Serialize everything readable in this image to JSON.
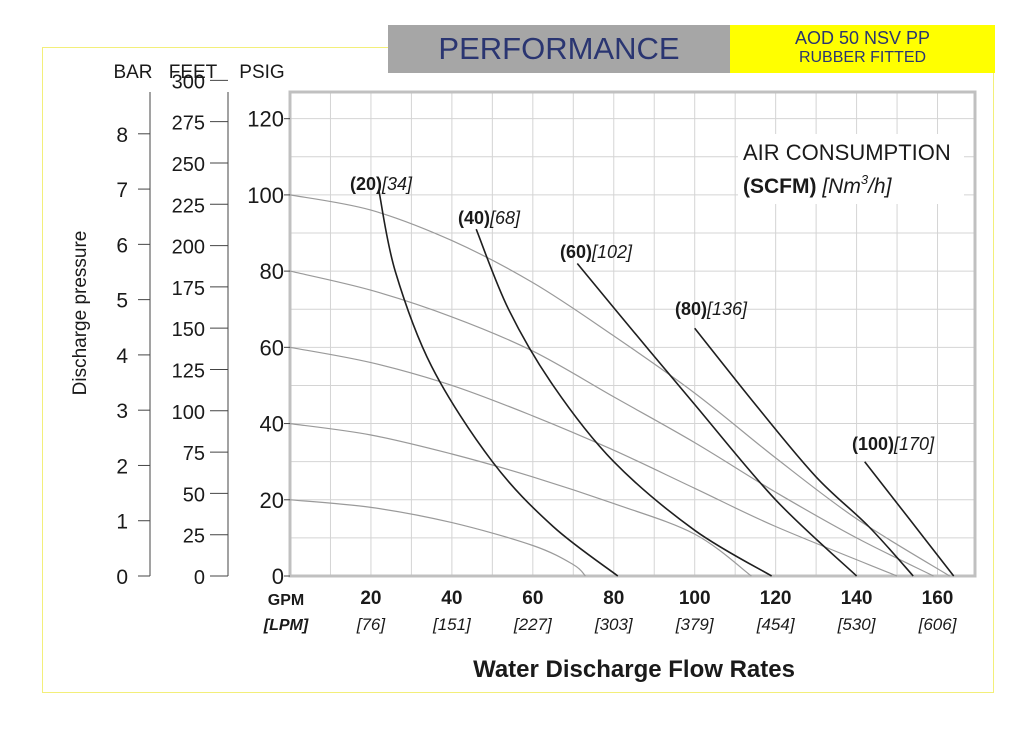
{
  "header": {
    "title": "PERFORMANCE",
    "model_line1": "AOD 50 NSV PP",
    "model_line2": "RUBBER FITTED"
  },
  "colors": {
    "title_bar": "#a6a6a6",
    "model_bar": "#ffff00",
    "header_text": "#2a3571",
    "frame": "#f3ef7a",
    "grid": "#d4d4d4",
    "plot_border": "#c0c0c0",
    "head_curves": "#9a9a9a",
    "air_curves": "#1f1f1f"
  },
  "chart_data": {
    "type": "line",
    "xlabel": "Water Discharge Flow Rates",
    "ylabel": "Discharge pressure",
    "xlim": [
      0,
      170
    ],
    "ylim": [
      0,
      127
    ],
    "grid": true,
    "x_unit_labels": [
      "GPM",
      "[LPM]"
    ],
    "x_ticks": [
      {
        "gpm": "20",
        "lpm": "[76]"
      },
      {
        "gpm": "40",
        "lpm": "[151]"
      },
      {
        "gpm": "60",
        "lpm": "[227]"
      },
      {
        "gpm": "80",
        "lpm": "[303]"
      },
      {
        "gpm": "100",
        "lpm": "[379]"
      },
      {
        "gpm": "120",
        "lpm": "[454]"
      },
      {
        "gpm": "140",
        "lpm": "[530]"
      },
      {
        "gpm": "160",
        "lpm": "[606]"
      }
    ],
    "y_ticks": [
      "0",
      "20",
      "40",
      "60",
      "80",
      "100",
      "120"
    ],
    "bar_scale": {
      "label": "BAR",
      "ticks": [
        "0",
        "1",
        "2",
        "3",
        "4",
        "5",
        "6",
        "7",
        "8"
      ]
    },
    "feet_scale": {
      "label": "FEET",
      "ticks": [
        "0",
        "25",
        "50",
        "75",
        "100",
        "125",
        "150",
        "175",
        "200",
        "225",
        "250",
        "275",
        "300"
      ]
    },
    "psig_label": "PSIG",
    "air_consumption_title": "AIR CONSUMPTION",
    "air_consumption_units_bold": "(SCFM)",
    "air_consumption_units_italic": "[Nm",
    "air_consumption_units_sup": "3",
    "air_consumption_units_end": "/h]",
    "head_curves": [
      {
        "points": [
          [
            0,
            100
          ],
          [
            20,
            96
          ],
          [
            40,
            88
          ],
          [
            60,
            77
          ],
          [
            80,
            63
          ],
          [
            100,
            48
          ],
          [
            120,
            31
          ],
          [
            140,
            15
          ],
          [
            163,
            0
          ]
        ]
      },
      {
        "points": [
          [
            0,
            80
          ],
          [
            20,
            75
          ],
          [
            40,
            68
          ],
          [
            60,
            59
          ],
          [
            80,
            47
          ],
          [
            100,
            35
          ],
          [
            120,
            22
          ],
          [
            140,
            10
          ],
          [
            159,
            0
          ]
        ]
      },
      {
        "points": [
          [
            0,
            60
          ],
          [
            20,
            56
          ],
          [
            40,
            50
          ],
          [
            60,
            42
          ],
          [
            80,
            33
          ],
          [
            100,
            23
          ],
          [
            120,
            13
          ],
          [
            150,
            0
          ]
        ]
      },
      {
        "points": [
          [
            0,
            40
          ],
          [
            20,
            37
          ],
          [
            40,
            32
          ],
          [
            60,
            26
          ],
          [
            80,
            19
          ],
          [
            100,
            11
          ],
          [
            114,
            0
          ]
        ]
      },
      {
        "points": [
          [
            0,
            20
          ],
          [
            20,
            18
          ],
          [
            40,
            14
          ],
          [
            60,
            8
          ],
          [
            70,
            3
          ],
          [
            73,
            0
          ]
        ]
      }
    ],
    "air_curves": [
      {
        "bold": "(20)",
        "italic": "[34]",
        "points": [
          [
            22,
            101
          ],
          [
            26,
            80
          ],
          [
            35,
            55
          ],
          [
            50,
            30
          ],
          [
            65,
            13
          ],
          [
            81,
            0
          ]
        ]
      },
      {
        "bold": "(40)",
        "italic": "[68]",
        "points": [
          [
            46,
            91
          ],
          [
            54,
            70
          ],
          [
            65,
            50
          ],
          [
            80,
            30
          ],
          [
            100,
            12
          ],
          [
            119,
            0
          ]
        ]
      },
      {
        "bold": "(60)",
        "italic": "[102]",
        "points": [
          [
            71,
            82
          ],
          [
            85,
            64
          ],
          [
            100,
            45
          ],
          [
            120,
            20
          ],
          [
            140,
            0
          ]
        ]
      },
      {
        "bold": "(80)",
        "italic": "[136]",
        "points": [
          [
            100,
            65
          ],
          [
            115,
            45
          ],
          [
            130,
            26
          ],
          [
            143,
            13
          ],
          [
            154,
            0
          ]
        ]
      },
      {
        "bold": "(100)",
        "italic": "[170]",
        "points": [
          [
            142,
            30
          ],
          [
            153,
            15
          ],
          [
            164,
            0
          ]
        ]
      }
    ]
  }
}
